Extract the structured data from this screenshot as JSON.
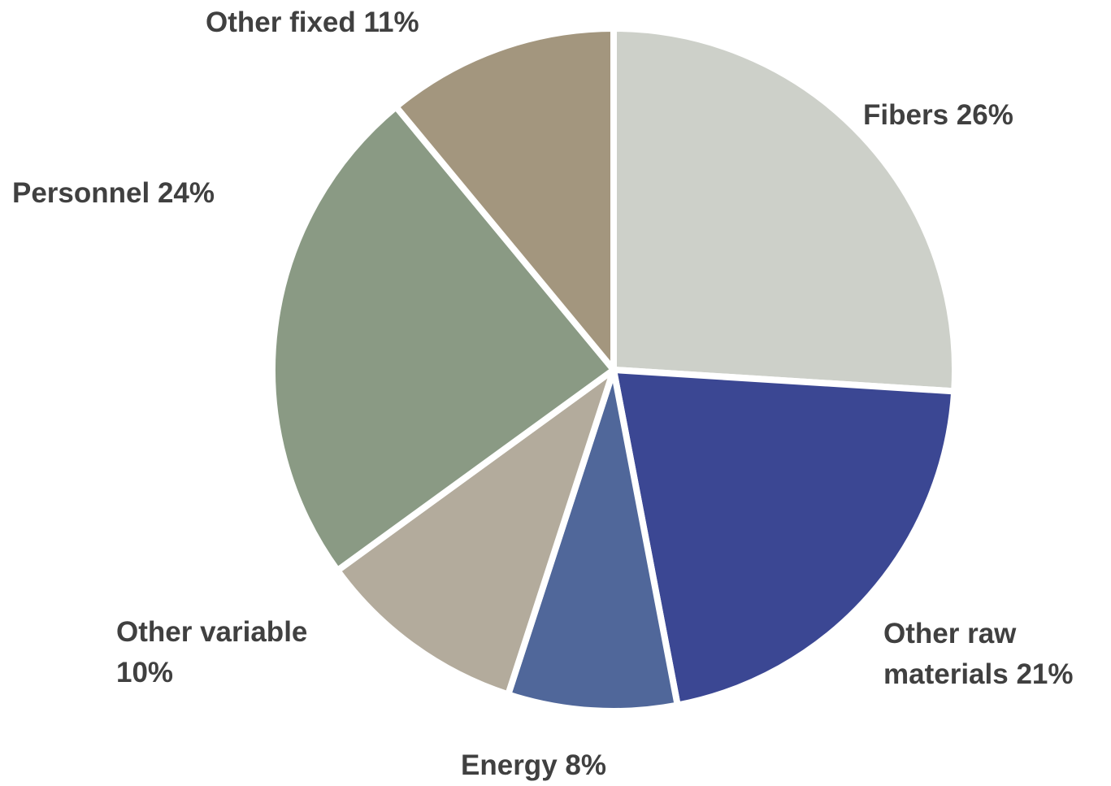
{
  "chart_data": {
    "type": "pie",
    "categories": [
      "Fibers",
      "Other raw materials",
      "Energy",
      "Other variable",
      "Personnel",
      "Other fixed"
    ],
    "values": [
      26,
      21,
      8,
      10,
      24,
      11
    ],
    "value_labels": [
      "26%",
      "21%",
      "8%",
      "10%",
      "24%",
      "11%"
    ],
    "colors": [
      "#cdd0c9",
      "#3b4793",
      "#50679a",
      "#b3ab9c",
      "#8a9a84",
      "#a3967e"
    ]
  }
}
